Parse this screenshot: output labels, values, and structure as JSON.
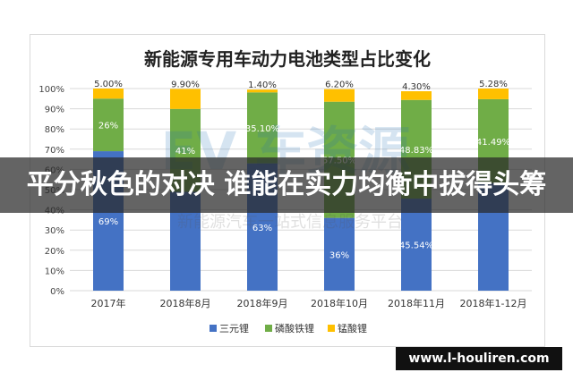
{
  "chart_data": {
    "type": "bar",
    "stacked": true,
    "title": "新能源专用车动力电池类型占比变化",
    "categories": [
      "2017年",
      "2018年8月",
      "2018年9月",
      "2018年10月",
      "2018年11月",
      "2018年1-12月"
    ],
    "series": [
      {
        "name": "三元锂",
        "color": "#4472c4",
        "values": [
          69,
          48.9,
          63,
          36,
          45.54,
          53.23
        ],
        "labels": [
          "69%",
          "",
          "63%",
          "36%",
          "45.54%",
          ""
        ]
      },
      {
        "name": "磷酸铁锂",
        "color": "#70ad47",
        "values": [
          26,
          41,
          35.1,
          57.5,
          48.83,
          41.49
        ],
        "labels": [
          "26%",
          "41%",
          "35.10%",
          "57.50%",
          "48.83%",
          "41.49%"
        ]
      },
      {
        "name": "锰酸锂",
        "color": "#ffc000",
        "values": [
          5,
          9.9,
          1.4,
          6.2,
          4.3,
          5.28
        ],
        "labels": [
          "5.00%",
          "9.90%",
          "1.40%",
          "6.20%",
          "4.30%",
          "5.28%"
        ]
      }
    ],
    "yticks": [
      "0%",
      "10%",
      "20%",
      "30%",
      "40%",
      "50%",
      "60%",
      "70%",
      "80%",
      "90%",
      "100%"
    ],
    "ylim": [
      0,
      100
    ],
    "grid": true,
    "legend": "bottom"
  },
  "overlay": {
    "headline": "平分秋色的对决 谁能在实力均衡中拔得头筹",
    "url": "www.l-houliren.com"
  },
  "watermark": {
    "brand": "EV 车资源",
    "tagline": "新能源汽车一站式信息服务平台"
  }
}
